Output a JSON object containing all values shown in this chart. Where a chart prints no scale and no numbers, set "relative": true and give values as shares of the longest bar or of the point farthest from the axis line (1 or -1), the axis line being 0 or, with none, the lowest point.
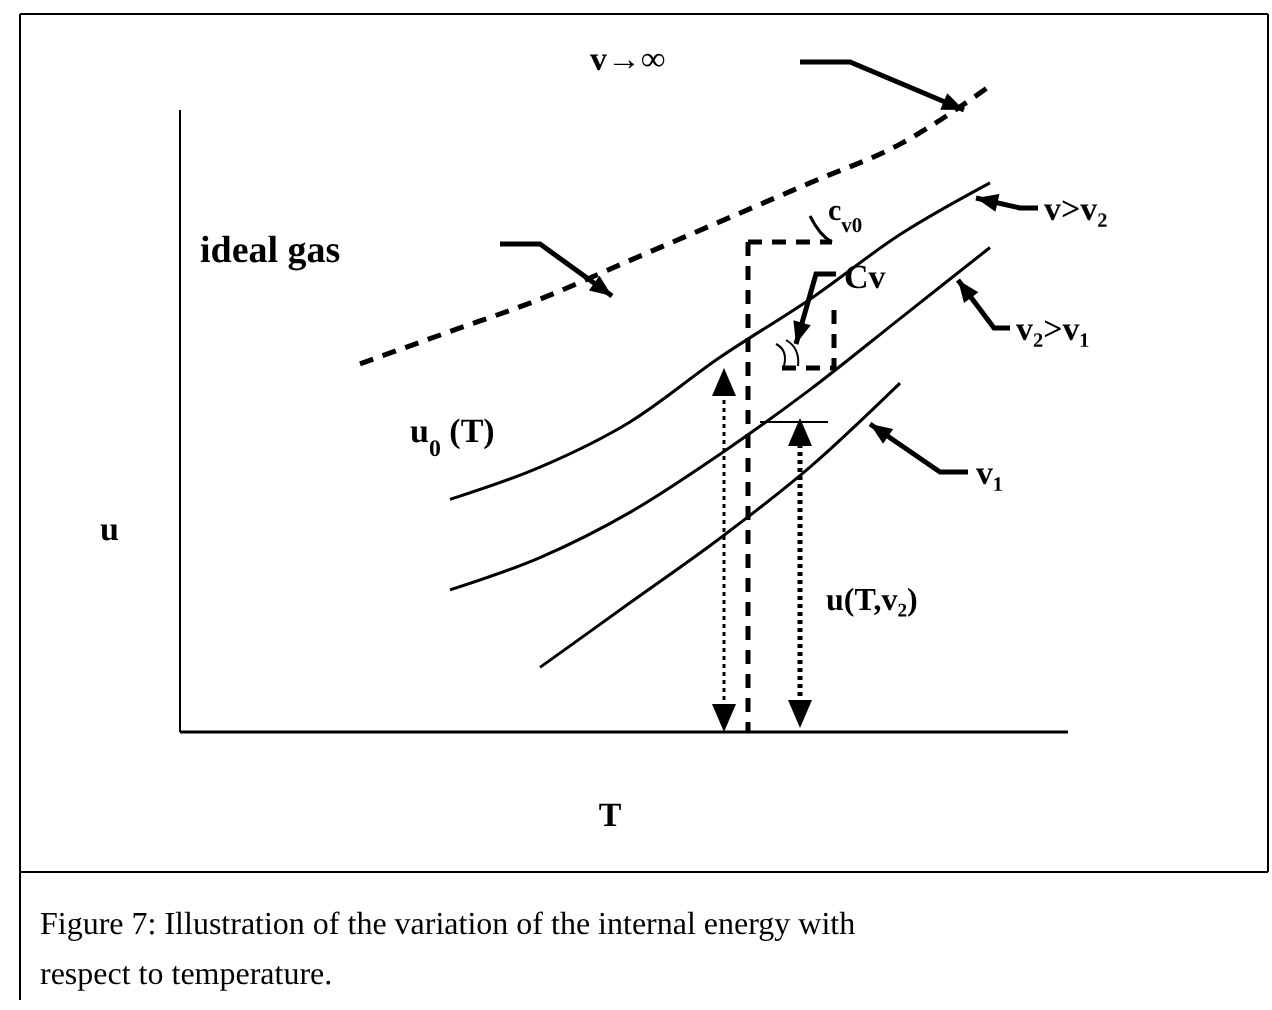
{
  "chart_data": {
    "type": "line",
    "relative": true,
    "xlabel": "T",
    "ylabel": "u",
    "categories": [
      null,
      null,
      null,
      null,
      null,
      null,
      null,
      null,
      null,
      null,
      null
    ],
    "series": [
      {
        "name": "ideal gas",
        "color": "#000000",
        "line_style": "dashed",
        "values": [
          null,
          null,
          0.57,
          0.62,
          0.67,
          0.73,
          0.79,
          0.85,
          0.91,
          1,
          null
        ]
      },
      {
        "name": "v>v₂",
        "color": "#000000",
        "line_style": "solid",
        "values": [
          null,
          null,
          null,
          0.36,
          0.41,
          0.48,
          0.58,
          0.67,
          0.77,
          0.85,
          null
        ]
      },
      {
        "name": "v₂>v₁",
        "color": "#000000",
        "line_style": "solid",
        "values": [
          null,
          null,
          null,
          0.22,
          0.27,
          0.34,
          0.43,
          0.53,
          0.64,
          0.75,
          null
        ]
      },
      {
        "name": "v₁",
        "color": "#000000",
        "line_style": "solid",
        "values": [
          null,
          null,
          null,
          null,
          0.1,
          0.2,
          0.3,
          0.41,
          0.54,
          null,
          null
        ]
      }
    ],
    "annotations": [
      "v→∞",
      "u$_{0}$ (T)",
      "c$_{v0}$",
      "Cv",
      "u(T,v₂)",
      "Figure 7: Illustration of the variation of the internal energy with respect to temperature."
    ]
  }
}
